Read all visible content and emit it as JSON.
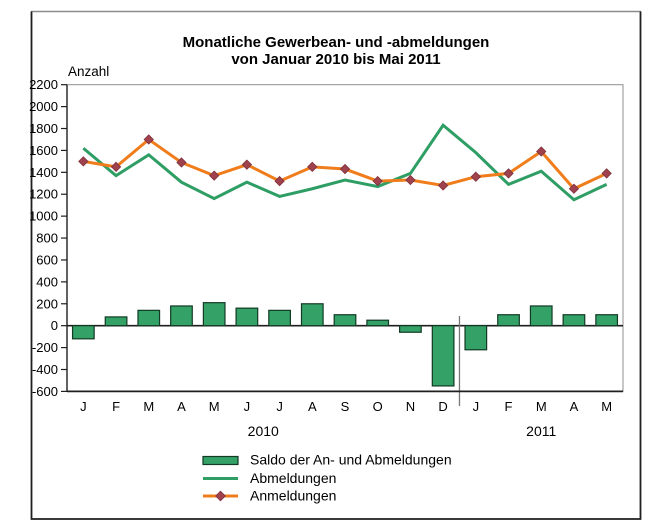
{
  "figure": {
    "title_line1": "Monatliche Gewerbean- und -abmeldungen",
    "title_line2": "von Januar 2010 bis Mai 2011",
    "y_axis_label": "Anzahl"
  },
  "legend": [
    {
      "label": "Saldo der An- und Abmeldungen",
      "swatch": "bar"
    },
    {
      "label": "Abmeldungen",
      "swatch": "line"
    },
    {
      "label": "Anmeldungen",
      "swatch": "line-diamond"
    }
  ],
  "colors": {
    "bar_fill": "#34A167",
    "bar_border": "#123A24",
    "abmeldungen_line": "#2E9E64",
    "anmeldungen_line": "#F07D1C",
    "marker_fill": "#A0424E",
    "marker_edge": "#7E2F3A",
    "axis": "#1F1F1F",
    "plot_frame": "#8F8F8F",
    "border_dark": "#1F1F1F",
    "border_light": "#8C8C8C",
    "separator": "#777777",
    "text": "#000000"
  },
  "chart_data": {
    "type": "bar+line",
    "title": "Monatliche Gewerbean- und -abmeldungen von Januar 2010 bis Mai 2011",
    "xlabel": "",
    "ylabel": "Anzahl",
    "categories": [
      "J",
      "F",
      "M",
      "A",
      "M",
      "J",
      "J",
      "A",
      "S",
      "O",
      "N",
      "D",
      "J",
      "F",
      "M",
      "A",
      "M"
    ],
    "year_groups": [
      {
        "label": "2010",
        "count": 12
      },
      {
        "label": "2011",
        "count": 5
      }
    ],
    "series": [
      {
        "name": "Saldo der An- und Abmeldungen",
        "type": "bar",
        "color_key": "bar_fill",
        "values": [
          -120,
          80,
          140,
          180,
          210,
          160,
          140,
          200,
          100,
          50,
          -60,
          -550,
          -220,
          100,
          180,
          100,
          100
        ]
      },
      {
        "name": "Abmeldungen",
        "type": "line",
        "color_key": "abmeldungen_line",
        "values": [
          1620,
          1370,
          1560,
          1310,
          1160,
          1310,
          1180,
          1250,
          1330,
          1270,
          1390,
          1830,
          1580,
          1290,
          1410,
          1150,
          1290
        ]
      },
      {
        "name": "Anmeldungen",
        "type": "line",
        "marker": "diamond",
        "color_key": "anmeldungen_line",
        "values": [
          1500,
          1450,
          1700,
          1490,
          1370,
          1470,
          1320,
          1450,
          1430,
          1320,
          1330,
          1280,
          1360,
          1390,
          1590,
          1250,
          1390
        ]
      }
    ],
    "ylim": [
      -600,
      2200
    ],
    "ytick_step": 200,
    "grid": false,
    "legend_position": "bottom"
  }
}
